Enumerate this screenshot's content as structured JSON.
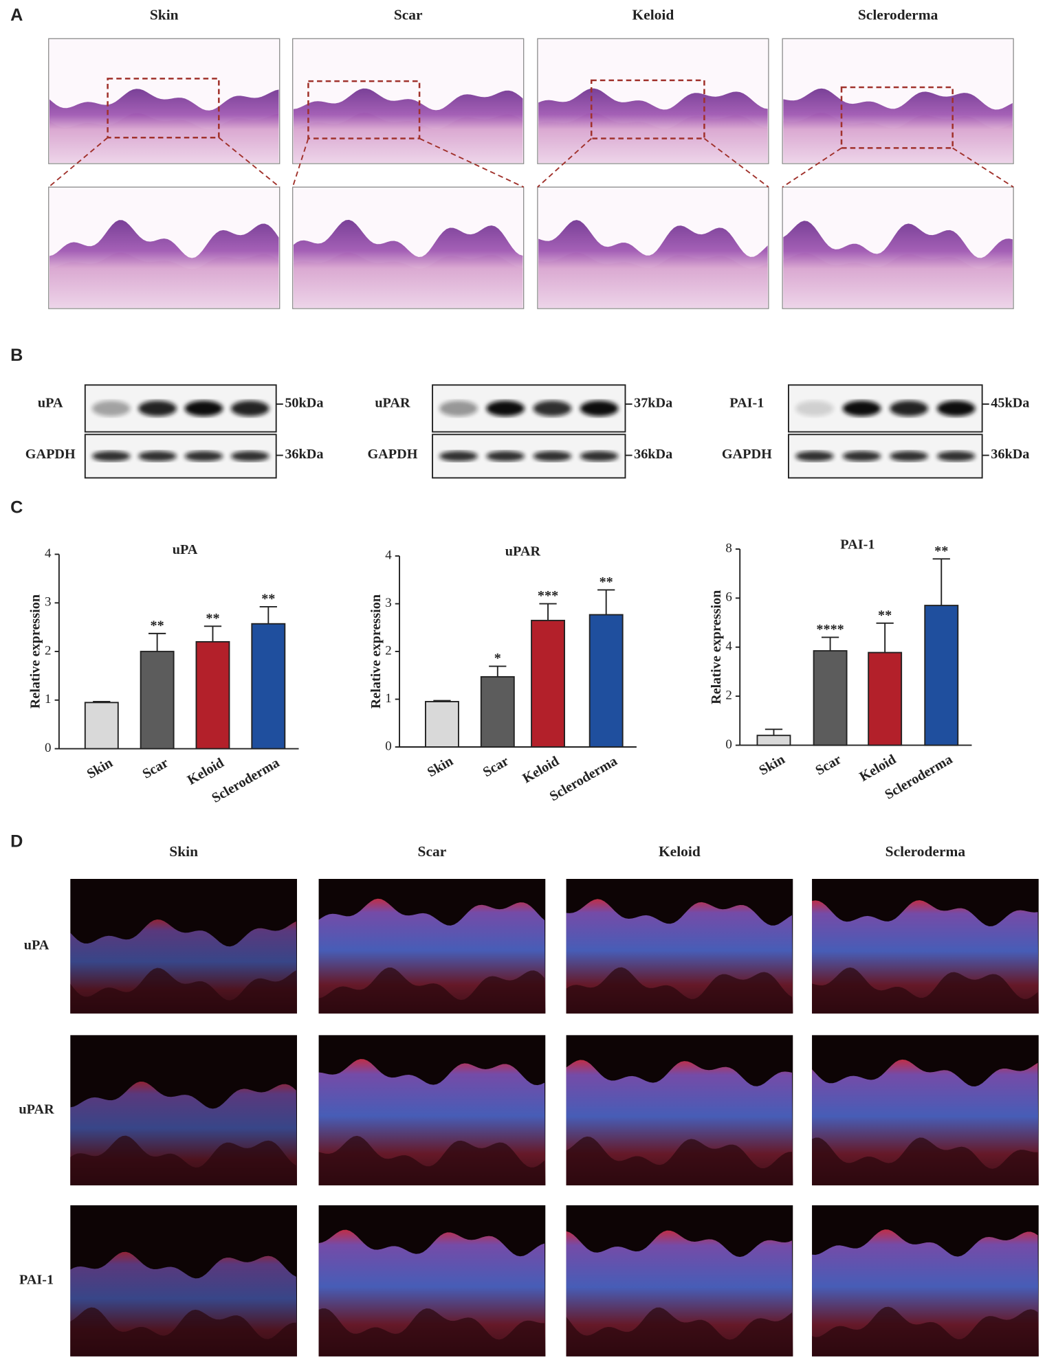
{
  "panel_labels": [
    "A",
    "B",
    "C",
    "D"
  ],
  "histology": {
    "columns": [
      "Skin",
      "Scar",
      "Keloid",
      "Scleroderma"
    ]
  },
  "western_blot": {
    "blots": [
      {
        "protein": "uPA",
        "protein_size": "50kDa",
        "control": "GAPDH",
        "control_size": "36kDa"
      },
      {
        "protein": "uPAR",
        "protein_size": "37kDa",
        "control": "GAPDH",
        "control_size": "36kDa"
      },
      {
        "protein": "PAI-1",
        "protein_size": "45kDa",
        "control": "GAPDH",
        "control_size": "36kDa"
      }
    ]
  },
  "chart_data": [
    {
      "type": "bar",
      "title": "uPA",
      "y_label": "Relative expression",
      "categories": [
        "Skin",
        "Scar",
        "Keloid",
        "Scleroderma"
      ],
      "values": [
        0.95,
        2.0,
        2.2,
        2.57
      ],
      "errors": [
        0.02,
        0.37,
        0.32,
        0.35
      ],
      "annotations": [
        null,
        "**",
        "**",
        "**"
      ],
      "colors": [
        "#d9d9d9",
        "#5c5c5c",
        "#b3202a",
        "#1f4f9e"
      ],
      "ylim": [
        0,
        4
      ],
      "yticks": [
        0,
        1,
        2,
        3,
        4
      ]
    },
    {
      "type": "bar",
      "title": "uPAR",
      "y_label": "Relative expression",
      "categories": [
        "Skin",
        "Scar",
        "Keloid",
        "Scleroderma"
      ],
      "values": [
        0.95,
        1.47,
        2.65,
        2.77
      ],
      "errors": [
        0.02,
        0.22,
        0.35,
        0.52
      ],
      "annotations": [
        null,
        "*",
        "***",
        "**"
      ],
      "colors": [
        "#d9d9d9",
        "#5c5c5c",
        "#b3202a",
        "#1f4f9e"
      ],
      "ylim": [
        0,
        4
      ],
      "yticks": [
        0,
        1,
        2,
        3,
        4
      ]
    },
    {
      "type": "bar",
      "title": "PAI-1",
      "y_label": "Relative expression",
      "categories": [
        "Skin",
        "Scar",
        "Keloid",
        "Scleroderma"
      ],
      "values": [
        0.4,
        3.85,
        3.78,
        5.7
      ],
      "errors": [
        0.25,
        0.55,
        1.2,
        1.9
      ],
      "annotations": [
        null,
        "****",
        "**",
        "**"
      ],
      "colors": [
        "#d9d9d9",
        "#5c5c5c",
        "#b3202a",
        "#1f4f9e"
      ],
      "ylim": [
        0,
        8
      ],
      "yticks": [
        0,
        2,
        4,
        6,
        8
      ]
    }
  ],
  "immunofluorescence": {
    "columns": [
      "Skin",
      "Scar",
      "Keloid",
      "Scleroderma"
    ],
    "rows": [
      "uPA",
      "uPAR",
      "PAI-1"
    ]
  }
}
